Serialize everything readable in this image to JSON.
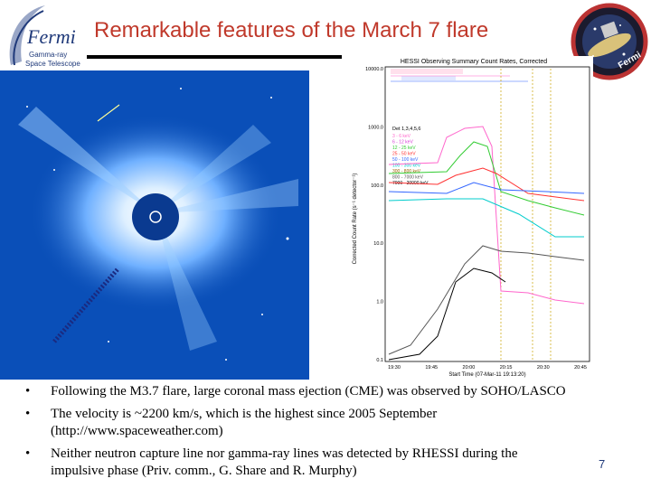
{
  "header": {
    "title": "Remarkable features of the March 7 flare",
    "logo": {
      "word": "Fermi",
      "line1": "Gamma-ray",
      "line2": "Space Telescope"
    },
    "mission_patch_label": "Fermi"
  },
  "lasco_image": {
    "description_icon": "solar-corona-image"
  },
  "hessi_plot": {
    "title": "HESSI Observing Summary Count Rates, Corrected",
    "y_axis_label": "Corrected Count Rate (s⁻¹ detector⁻¹)",
    "y_ticks": [
      "10000.0",
      "1000.0",
      "100.0",
      "10.0",
      "1.0",
      "0.1"
    ],
    "x_ticks": [
      "19:30",
      "19:45",
      "20:00",
      "20:15",
      "20:30",
      "20:45"
    ],
    "x_label": "Start Time (07-Mar-11 19:13:20)",
    "legend_header": "Det 1,3,4,5,6",
    "legend": [
      "3 - 6 keV",
      "6 - 12 keV",
      "12 - 25 keV",
      "25 - 50 keV",
      "50 - 100 keV",
      "100 - 300 keV",
      "300 - 800 keV",
      "800 - 7000 keV",
      "7000 - 20000 keV"
    ],
    "legend_colors": [
      "#ff66cc",
      "#d63bd6",
      "#33cc33",
      "#ff3333",
      "#3366ff",
      "#00cccc",
      "#996600",
      "#555555",
      "#000000"
    ]
  },
  "bullets": [
    {
      "line1": "Following the M3.7 flare, large coronal mass ejection (CME) was observed by SOHO/LASCO"
    },
    {
      "line1": "The velocity is ~2200 km/s, which is the highest since 2005 September",
      "line2": "(http://www.spaceweather.com)"
    },
    {
      "line1": "Neither neutron capture line nor gamma-ray lines was detected by RHESSI during the",
      "line2": "impulsive phase (Priv. comm., G. Share and R. Murphy)"
    }
  ],
  "page_number": "7",
  "colors": {
    "title": "#c0392b",
    "brand": "#203a7a",
    "lasco_bg": "#0a4fb8"
  }
}
